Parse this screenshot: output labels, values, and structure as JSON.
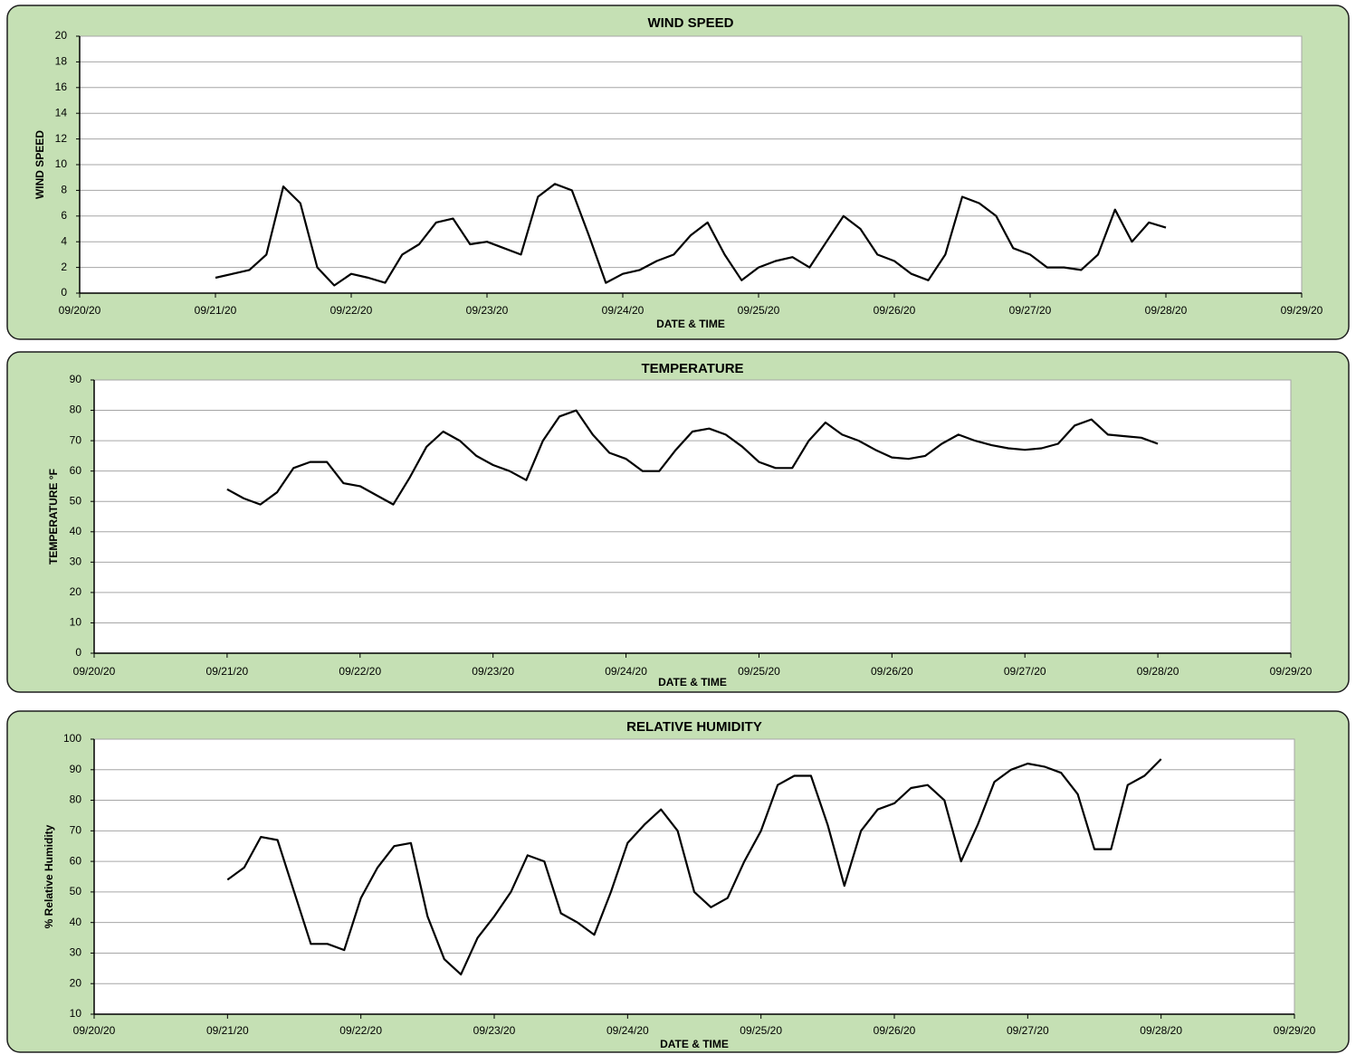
{
  "chart_data": [
    {
      "type": "line",
      "title": "WIND SPEED",
      "x_label": "DATE & TIME",
      "y_label": "WIND SPEED",
      "xlim": [
        0,
        9
      ],
      "xticks": [
        {
          "value": 0,
          "label": "09/20/20"
        },
        {
          "value": 1,
          "label": "09/21/20"
        },
        {
          "value": 2,
          "label": "09/22/20"
        },
        {
          "value": 3,
          "label": "09/23/20"
        },
        {
          "value": 4,
          "label": "09/24/20"
        },
        {
          "value": 5,
          "label": "09/25/20"
        },
        {
          "value": 6,
          "label": "09/26/20"
        },
        {
          "value": 7,
          "label": "09/27/20"
        },
        {
          "value": 8,
          "label": "09/28/20"
        },
        {
          "value": 9,
          "label": "09/29/20"
        }
      ],
      "ylim": [
        0,
        20
      ],
      "yticks": [
        0,
        2,
        4,
        6,
        8,
        10,
        12,
        14,
        16,
        18,
        20
      ],
      "grid": true,
      "color": "#000000",
      "x": [
        1,
        1.125,
        1.25,
        1.375,
        1.5,
        1.625,
        1.75,
        1.875,
        2,
        2.125,
        2.25,
        2.375,
        2.5,
        2.625,
        2.75,
        2.875,
        3,
        3.125,
        3.25,
        3.375,
        3.5,
        3.625,
        3.75,
        3.875,
        4,
        4.125,
        4.25,
        4.375,
        4.5,
        4.625,
        4.75,
        4.875,
        5,
        5.125,
        5.25,
        5.375,
        5.5,
        5.625,
        5.75,
        5.875,
        6,
        6.125,
        6.25,
        6.375,
        6.5,
        6.625,
        6.75,
        6.875,
        7,
        7.125,
        7.25,
        7.375,
        7.5,
        7.625,
        7.75,
        7.875,
        8
      ],
      "values": [
        1.2,
        1.5,
        1.8,
        3.0,
        8.3,
        7.0,
        2.0,
        0.6,
        1.5,
        1.2,
        0.8,
        3.0,
        3.8,
        5.5,
        5.8,
        3.8,
        4.0,
        3.5,
        3.0,
        7.5,
        8.5,
        8.0,
        4.5,
        0.8,
        1.5,
        1.8,
        2.5,
        3.0,
        4.5,
        5.5,
        3.0,
        1.0,
        2.0,
        2.5,
        2.8,
        2.0,
        4.0,
        6.0,
        5.0,
        3.0,
        2.5,
        1.5,
        1.0,
        3.0,
        7.5,
        7.0,
        6.0,
        3.5,
        3.0,
        2.0,
        2.0,
        1.8,
        3.0,
        6.5,
        4.0,
        5.5,
        5.1
      ]
    },
    {
      "type": "line",
      "title": "TEMPERATURE",
      "x_label": "DATE & TIME",
      "y_label": "TEMPERATURE °F",
      "xlim": [
        0,
        9
      ],
      "xticks": [
        {
          "value": 0,
          "label": "09/20/20"
        },
        {
          "value": 1,
          "label": "09/21/20"
        },
        {
          "value": 2,
          "label": "09/22/20"
        },
        {
          "value": 3,
          "label": "09/23/20"
        },
        {
          "value": 4,
          "label": "09/24/20"
        },
        {
          "value": 5,
          "label": "09/25/20"
        },
        {
          "value": 6,
          "label": "09/26/20"
        },
        {
          "value": 7,
          "label": "09/27/20"
        },
        {
          "value": 8,
          "label": "09/28/20"
        },
        {
          "value": 9,
          "label": "09/29/20"
        }
      ],
      "ylim": [
        0,
        90
      ],
      "yticks": [
        0,
        10,
        20,
        30,
        40,
        50,
        60,
        70,
        80,
        90
      ],
      "grid": true,
      "color": "#000000",
      "x": [
        1,
        1.125,
        1.25,
        1.375,
        1.5,
        1.625,
        1.75,
        1.875,
        2,
        2.125,
        2.25,
        2.375,
        2.5,
        2.625,
        2.75,
        2.875,
        3,
        3.125,
        3.25,
        3.375,
        3.5,
        3.625,
        3.75,
        3.875,
        4,
        4.125,
        4.25,
        4.375,
        4.5,
        4.625,
        4.75,
        4.875,
        5,
        5.125,
        5.25,
        5.375,
        5.5,
        5.625,
        5.75,
        5.875,
        6,
        6.125,
        6.25,
        6.375,
        6.5,
        6.625,
        6.75,
        6.875,
        7,
        7.125,
        7.25,
        7.375,
        7.5,
        7.625,
        7.75,
        7.875,
        8
      ],
      "values": [
        54,
        51,
        49,
        53,
        61,
        63,
        63,
        56,
        55,
        52,
        49,
        58,
        68,
        73,
        70,
        65,
        62,
        60,
        57,
        70,
        78,
        80,
        72,
        66,
        64,
        60,
        60,
        67,
        73,
        74,
        72,
        68,
        63,
        61,
        61,
        70,
        76,
        72,
        70,
        67,
        64.5,
        64,
        65,
        69,
        72,
        70,
        68.5,
        67.5,
        67,
        67.5,
        69,
        75,
        77,
        72,
        71.5,
        71,
        69
      ]
    },
    {
      "type": "line",
      "title": "RELATIVE HUMIDITY",
      "x_label": "DATE & TIME",
      "y_label": "% Relative Humidity",
      "xlim": [
        0,
        9
      ],
      "xticks": [
        {
          "value": 0,
          "label": "09/20/20"
        },
        {
          "value": 1,
          "label": "09/21/20"
        },
        {
          "value": 2,
          "label": "09/22/20"
        },
        {
          "value": 3,
          "label": "09/23/20"
        },
        {
          "value": 4,
          "label": "09/24/20"
        },
        {
          "value": 5,
          "label": "09/25/20"
        },
        {
          "value": 6,
          "label": "09/26/20"
        },
        {
          "value": 7,
          "label": "09/27/20"
        },
        {
          "value": 8,
          "label": "09/28/20"
        },
        {
          "value": 9,
          "label": "09/29/20"
        }
      ],
      "ylim": [
        10,
        100
      ],
      "yticks": [
        10,
        20,
        30,
        40,
        50,
        60,
        70,
        80,
        90,
        100
      ],
      "grid": true,
      "color": "#000000",
      "x": [
        1,
        1.125,
        1.25,
        1.375,
        1.5,
        1.625,
        1.75,
        1.875,
        2,
        2.125,
        2.25,
        2.375,
        2.5,
        2.625,
        2.75,
        2.875,
        3,
        3.125,
        3.25,
        3.375,
        3.5,
        3.625,
        3.75,
        3.875,
        4,
        4.125,
        4.25,
        4.375,
        4.5,
        4.625,
        4.75,
        4.875,
        5,
        5.125,
        5.25,
        5.375,
        5.5,
        5.625,
        5.75,
        5.875,
        6,
        6.125,
        6.25,
        6.375,
        6.5,
        6.625,
        6.75,
        6.875,
        7,
        7.125,
        7.25,
        7.375,
        7.5,
        7.625,
        7.75,
        7.875,
        8
      ],
      "values": [
        54,
        58,
        68,
        67,
        50,
        33,
        33,
        31,
        48,
        58,
        65,
        66,
        42,
        28,
        23,
        35,
        42,
        50,
        62,
        60,
        43,
        40,
        36,
        50,
        66,
        72,
        77,
        70,
        50,
        45,
        48,
        60,
        70,
        85,
        88,
        88,
        72,
        52,
        70,
        77,
        79,
        84,
        85,
        80,
        60,
        72,
        86,
        90,
        92,
        91,
        89,
        82,
        64,
        64,
        85,
        88,
        93.5
      ]
    }
  ]
}
